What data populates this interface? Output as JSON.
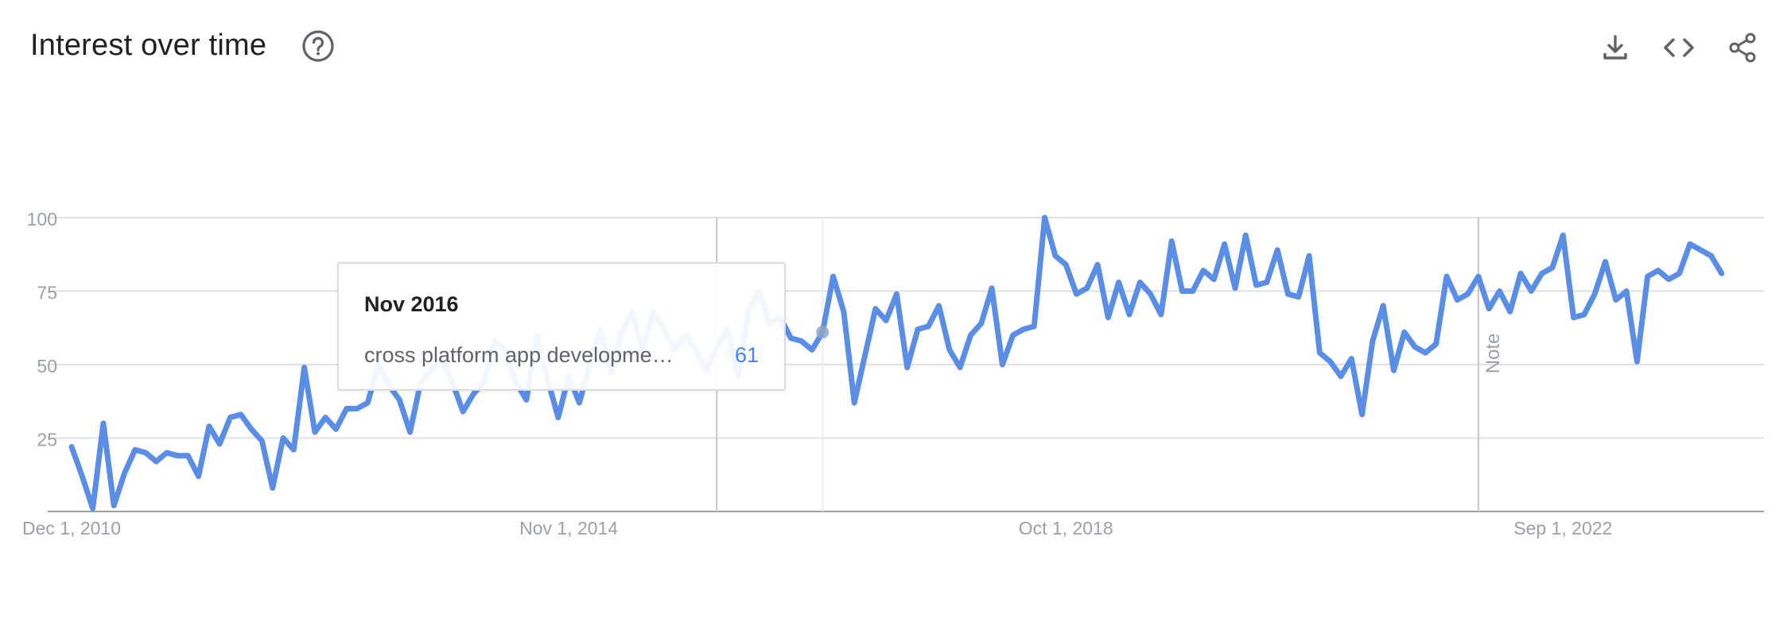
{
  "header": {
    "title": "Interest over time",
    "help_icon": "help-circle-icon",
    "download_icon": "download-icon",
    "embed_icon": "code-embed-icon",
    "share_icon": "share-icon"
  },
  "tooltip": {
    "date": "Nov 2016",
    "term": "cross platform app developme…",
    "value": "61"
  },
  "annotation": {
    "note_label": "Note"
  },
  "colors": {
    "series": "#5a8ee6",
    "grid": "#e0e0e0",
    "axis_text": "#9aa0a6",
    "icon": "#5f6368"
  },
  "chart_data": {
    "type": "line",
    "title": "Interest over time",
    "xlabel": "",
    "ylabel": "",
    "ylim": [
      0,
      100
    ],
    "yticks": [
      25,
      50,
      75,
      100
    ],
    "xtick_labels": [
      "Dec 1, 2010",
      "Nov 1, 2014",
      "Oct 1, 2018",
      "Sep 1, 2022"
    ],
    "x_start": "Dec 2010",
    "x_end": "Apr 2024",
    "grid": true,
    "legend": "none",
    "annotations": [
      {
        "label": "",
        "date": "Jan 2016"
      },
      {
        "label": "Note",
        "date": "Jan 2022"
      }
    ],
    "highlight": {
      "date": "Nov 2016",
      "value": 61
    },
    "series": [
      {
        "name": "cross platform app developme…",
        "values": [
          22,
          12,
          1,
          30,
          2,
          13,
          21,
          20,
          17,
          20,
          19,
          19,
          12,
          29,
          23,
          32,
          33,
          28,
          24,
          8,
          25,
          21,
          49,
          27,
          32,
          28,
          35,
          35,
          37,
          50,
          43,
          38,
          27,
          44,
          48,
          52,
          44,
          34,
          40,
          44,
          58,
          55,
          44,
          38,
          60,
          45,
          32,
          46,
          37,
          50,
          62,
          47,
          61,
          68,
          55,
          68,
          62,
          55,
          60,
          55,
          48,
          56,
          62,
          46,
          68,
          75,
          64,
          66,
          59,
          58,
          55,
          61,
          80,
          68,
          37,
          53,
          69,
          65,
          74,
          49,
          62,
          63,
          70,
          55,
          49,
          60,
          64,
          76,
          50,
          60,
          62,
          63,
          100,
          87,
          84,
          74,
          76,
          84,
          66,
          78,
          67,
          78,
          74,
          67,
          92,
          75,
          75,
          82,
          79,
          91,
          76,
          94,
          77,
          78,
          89,
          74,
          73,
          87,
          54,
          51,
          46,
          52,
          33,
          58,
          70,
          48,
          61,
          56,
          54,
          57,
          80,
          72,
          74,
          80,
          69,
          75,
          68,
          81,
          75,
          81,
          83,
          94,
          66,
          67,
          74,
          85,
          72,
          75,
          51,
          80,
          82,
          79,
          81,
          91,
          89,
          87,
          81
        ]
      }
    ]
  }
}
